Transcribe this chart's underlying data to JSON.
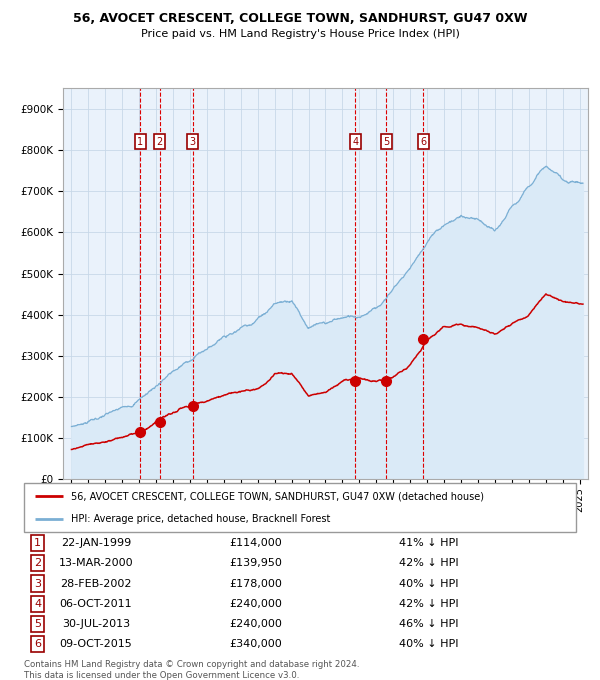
{
  "title1": "56, AVOCET CRESCENT, COLLEGE TOWN, SANDHURST, GU47 0XW",
  "title2": "Price paid vs. HM Land Registry's House Price Index (HPI)",
  "legend1": "56, AVOCET CRESCENT, COLLEGE TOWN, SANDHURST, GU47 0XW (detached house)",
  "legend2": "HPI: Average price, detached house, Bracknell Forest",
  "footer1": "Contains HM Land Registry data © Crown copyright and database right 2024.",
  "footer2": "This data is licensed under the Open Government Licence v3.0.",
  "sales": [
    {
      "num": 1,
      "date": "22-JAN-1999",
      "price": 114000,
      "pct": "41% ↓ HPI",
      "year": 1999.06
    },
    {
      "num": 2,
      "date": "13-MAR-2000",
      "price": 139950,
      "pct": "42% ↓ HPI",
      "year": 2000.2
    },
    {
      "num": 3,
      "date": "28-FEB-2002",
      "price": 178000,
      "pct": "40% ↓ HPI",
      "year": 2002.16
    },
    {
      "num": 4,
      "date": "06-OCT-2011",
      "price": 240000,
      "pct": "42% ↓ HPI",
      "year": 2011.77
    },
    {
      "num": 5,
      "date": "30-JUL-2013",
      "price": 240000,
      "pct": "46% ↓ HPI",
      "year": 2013.58
    },
    {
      "num": 6,
      "date": "09-OCT-2015",
      "price": 340000,
      "pct": "40% ↓ HPI",
      "year": 2015.77
    }
  ],
  "red_line_color": "#cc0000",
  "blue_line_color": "#7bafd4",
  "blue_fill_color": "#daeaf7",
  "background_color": "#eaf2fb",
  "grid_color": "#c8d8e8",
  "vline_color": "#dd0000",
  "sale_marker_color": "#cc0000",
  "box_label_color": "#990000",
  "ylim": [
    0,
    950000
  ],
  "xlim_start": 1994.5,
  "xlim_end": 2025.5,
  "hpi_anchors_x": [
    1995,
    1997,
    1999,
    2000,
    2001,
    2002,
    2003,
    2004,
    2005,
    2006,
    2007,
    2008,
    2009,
    2010,
    2011,
    2012,
    2013,
    2014,
    2015,
    2016,
    2017,
    2018,
    2019,
    2020,
    2021,
    2022,
    2023,
    2024,
    2025
  ],
  "hpi_anchors_y": [
    128000,
    155000,
    193000,
    228000,
    262000,
    290000,
    318000,
    348000,
    368000,
    390000,
    427000,
    438000,
    368000,
    378000,
    393000,
    398000,
    415000,
    463000,
    515000,
    577000,
    620000,
    638000,
    628000,
    600000,
    660000,
    715000,
    760000,
    730000,
    720000
  ],
  "red_anchors_x": [
    1995,
    1997,
    1999,
    2000,
    2001,
    2002,
    2003,
    2004,
    2005,
    2006,
    2007,
    2008,
    2009,
    2010,
    2011,
    2012,
    2013,
    2014,
    2015,
    2016,
    2017,
    2018,
    2019,
    2020,
    2021,
    2022,
    2023,
    2024,
    2025
  ],
  "red_anchors_y": [
    73000,
    92000,
    114000,
    140000,
    162000,
    178000,
    193000,
    205000,
    213000,
    220000,
    255000,
    260000,
    205000,
    212000,
    240000,
    245000,
    240000,
    248000,
    278000,
    340000,
    370000,
    375000,
    368000,
    355000,
    375000,
    400000,
    450000,
    432000,
    425000
  ]
}
